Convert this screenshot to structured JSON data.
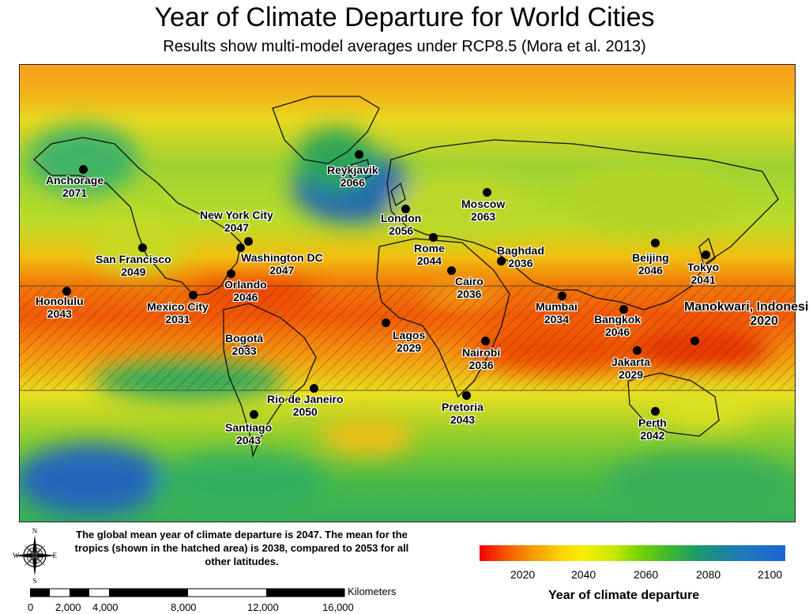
{
  "title": "Year of Climate Departure for World Cities",
  "subtitle": "Results show multi-model averages under RCP8.5 (Mora et al. 2013)",
  "cities": [
    {
      "name": "Anchorage",
      "year": "2071"
    },
    {
      "name": "Reykjavik",
      "year": "2066"
    },
    {
      "name": "Moscow",
      "year": "2063"
    },
    {
      "name": "London",
      "year": "2056"
    },
    {
      "name": "New York City",
      "year": "2047"
    },
    {
      "name": "Washington DC",
      "year": "2047"
    },
    {
      "name": "San Francisco",
      "year": "2049"
    },
    {
      "name": "Rome",
      "year": "2044"
    },
    {
      "name": "Baghdad",
      "year": "2036"
    },
    {
      "name": "Beijing",
      "year": "2046"
    },
    {
      "name": "Tokyo",
      "year": "2041"
    },
    {
      "name": "Orlando",
      "year": "2046"
    },
    {
      "name": "Honolulu",
      "year": "2043"
    },
    {
      "name": "Mexico City",
      "year": "2031"
    },
    {
      "name": "Cairo",
      "year": "2036"
    },
    {
      "name": "Mumbai",
      "year": "2034"
    },
    {
      "name": "Bangkok",
      "year": "2046"
    },
    {
      "name": "Manokwari, Indonesia",
      "year": "2020"
    },
    {
      "name": "Bogotá",
      "year": "2033"
    },
    {
      "name": "Lagos",
      "year": "2029"
    },
    {
      "name": "Nairobi",
      "year": "2036"
    },
    {
      "name": "Jakarta",
      "year": "2029"
    },
    {
      "name": "Rio de Janeiro",
      "year": "2050"
    },
    {
      "name": "Pretoria",
      "year": "2043"
    },
    {
      "name": "Perth",
      "year": "2042"
    },
    {
      "name": "Santiago",
      "year": "2043"
    }
  ],
  "note": "The global mean year of climate departure is 2047. The mean for the tropics (shown in the hatched area) is 2038, compared to 2053 for all other latitudes.",
  "compass": {
    "n": "N",
    "s": "S",
    "e": "E",
    "w": "W"
  },
  "legend": {
    "title": "Year of climate departure",
    "ticks": [
      "2020",
      "2040",
      "2060",
      "2080",
      "2100"
    ],
    "colors": {
      "early": "#f20000",
      "mid": "#f8f000",
      "late": "#3cb830",
      "latest": "#1d63d8"
    }
  },
  "scale": {
    "unit": "Kilometers",
    "ticks": [
      "0",
      "2,000",
      "4,000",
      "8,000",
      "12,000",
      "16,000"
    ]
  }
}
